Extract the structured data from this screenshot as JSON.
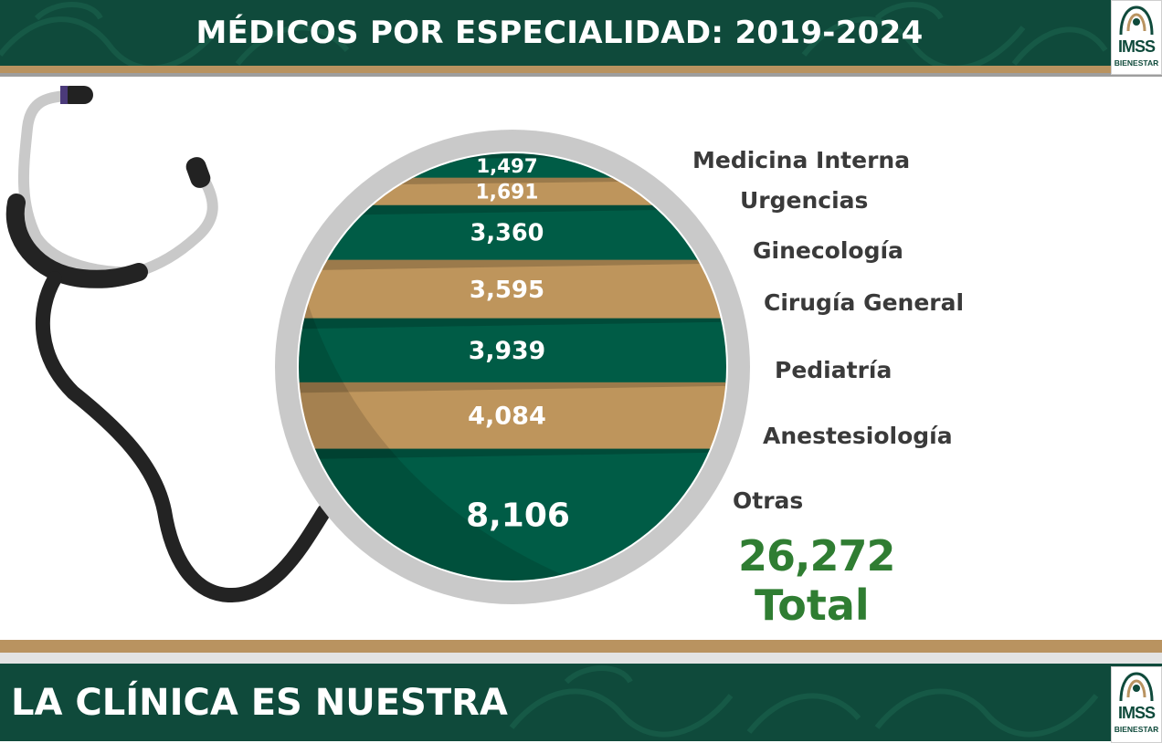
{
  "header": {
    "title": "MÉDICOS POR ESPECIALIDAD: 2019-2024"
  },
  "footer": {
    "slogan": "LA CLÍNICA ES NUESTRA"
  },
  "logo": {
    "name": "IMSS",
    "subtitle": "BIENESTAR"
  },
  "colors": {
    "green": "#005c46",
    "gold": "#be955c",
    "total": "#2f7d32",
    "ring": "#c9c9c9",
    "banner": "#0f4a3b",
    "gold_band": "#b99360"
  },
  "chart_data": {
    "type": "bar",
    "categories": [
      "Medicina Interna",
      "Urgencias",
      "Ginecología",
      "Cirugía General",
      "Pediatría",
      "Anestesiología",
      "Otras"
    ],
    "values": [
      1497,
      1691,
      3360,
      3595,
      3939,
      4084,
      8106
    ],
    "value_labels": [
      "1,497",
      "1,691",
      "3,360",
      "3,595",
      "3,939",
      "4,084",
      "8,106"
    ],
    "total": {
      "value": "26,272",
      "label": "Total"
    }
  }
}
